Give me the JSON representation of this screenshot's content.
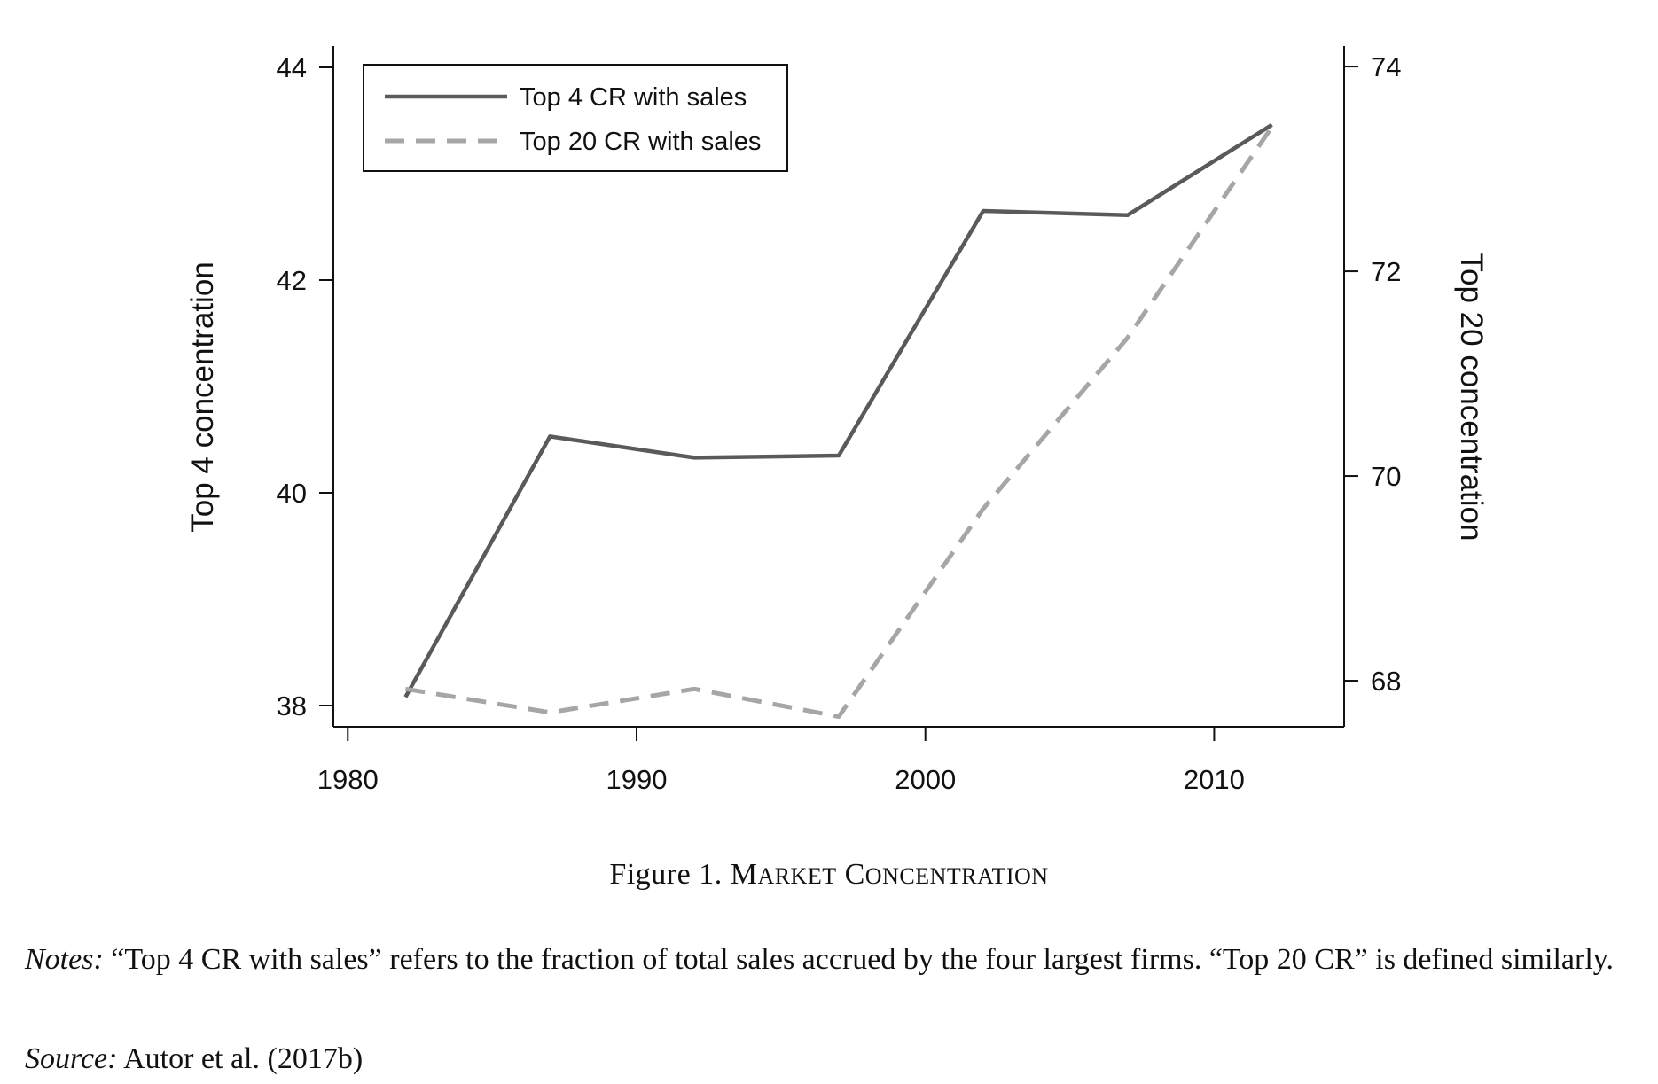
{
  "chart_data": {
    "type": "line",
    "x": [
      1982,
      1987,
      1992,
      1997,
      2002,
      2007,
      2012
    ],
    "xticks": [
      1980,
      1990,
      2000,
      2010
    ],
    "xlim": [
      1979.5,
      2014.5
    ],
    "left_axis": {
      "label": "Top 4 concentration",
      "ticks": [
        38,
        40,
        42,
        44
      ],
      "ylim": [
        37.8,
        44.2
      ]
    },
    "right_axis": {
      "label": "Top 20 concentration",
      "ticks": [
        68,
        70,
        72,
        74
      ],
      "ylim": [
        67.55,
        74.2
      ]
    },
    "series": [
      {
        "name": "Top 4 CR with sales",
        "axis": "left",
        "color": "#5a5a5a",
        "dash": "solid",
        "values": [
          38.08,
          40.53,
          40.33,
          40.35,
          42.65,
          42.61,
          43.46
        ]
      },
      {
        "name": "Top 20 CR with sales",
        "axis": "right",
        "color": "#a6a6a6",
        "dash": "dashed",
        "values": [
          67.92,
          67.69,
          67.92,
          67.65,
          69.68,
          71.35,
          73.41
        ]
      }
    ],
    "legend": {
      "placement": "top-left",
      "entries": [
        "Top 4 CR with sales",
        "Top 20 CR with sales"
      ]
    },
    "grid": false
  },
  "caption": {
    "figure_label": "Figure 1.",
    "title": "Market Concentration"
  },
  "notes": {
    "label": "Notes:",
    "text": "“Top 4 CR with sales” refers to the fraction of total sales accrued by the four largest firms. “Top 20 CR” is defined similarly."
  },
  "source": {
    "label": "Source:",
    "text": "Autor et al. (2017b)"
  }
}
